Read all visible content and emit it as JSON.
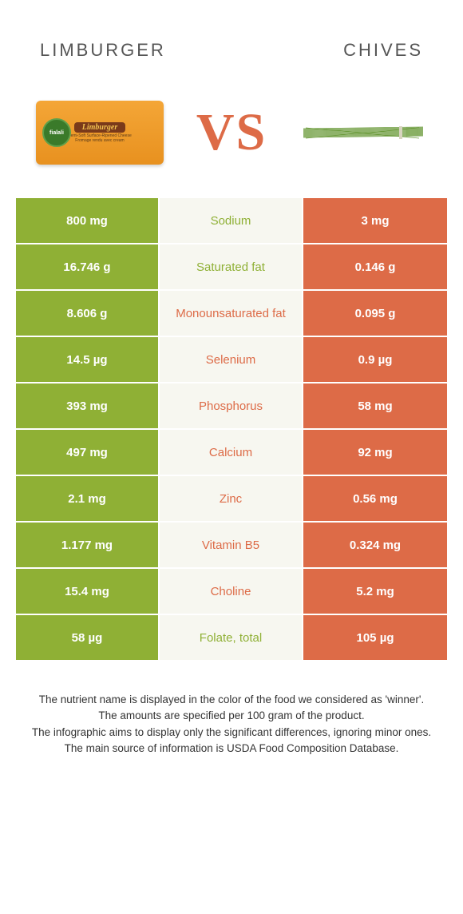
{
  "header": {
    "left_title": "LIMBURGER",
    "right_title": "CHIVES"
  },
  "vs_label": "VS",
  "colors": {
    "left_bg": "#8fb035",
    "right_bg": "#dd6b47",
    "mid_bg": "#f7f7f0",
    "mid_text_default": "#888888",
    "page_bg": "#ffffff"
  },
  "cheese": {
    "badge": "fialali",
    "banner": "Limburger"
  },
  "rows": [
    {
      "left": "800 mg",
      "label": "Sodium",
      "right": "3 mg",
      "winner": "right"
    },
    {
      "left": "16.746 g",
      "label": "Saturated fat",
      "right": "0.146 g",
      "winner": "right"
    },
    {
      "left": "8.606 g",
      "label": "Monounsaturated fat",
      "right": "0.095 g",
      "winner": "left"
    },
    {
      "left": "14.5 µg",
      "label": "Selenium",
      "right": "0.9 µg",
      "winner": "left"
    },
    {
      "left": "393 mg",
      "label": "Phosphorus",
      "right": "58 mg",
      "winner": "left"
    },
    {
      "left": "497 mg",
      "label": "Calcium",
      "right": "92 mg",
      "winner": "left"
    },
    {
      "left": "2.1 mg",
      "label": "Zinc",
      "right": "0.56 mg",
      "winner": "left"
    },
    {
      "left": "1.177 mg",
      "label": "Vitamin B5",
      "right": "0.324 mg",
      "winner": "left"
    },
    {
      "left": "15.4 mg",
      "label": "Choline",
      "right": "5.2 mg",
      "winner": "left"
    },
    {
      "left": "58 µg",
      "label": "Folate, total",
      "right": "105 µg",
      "winner": "right"
    }
  ],
  "footnote": {
    "line1": "The nutrient name is displayed in the color of the food we considered as 'winner'.",
    "line2": "The amounts are specified per 100 gram of the product.",
    "line3": "The infographic aims to display only the significant differences, ignoring minor ones.",
    "line4": "The main source of information is USDA Food Composition Database."
  }
}
